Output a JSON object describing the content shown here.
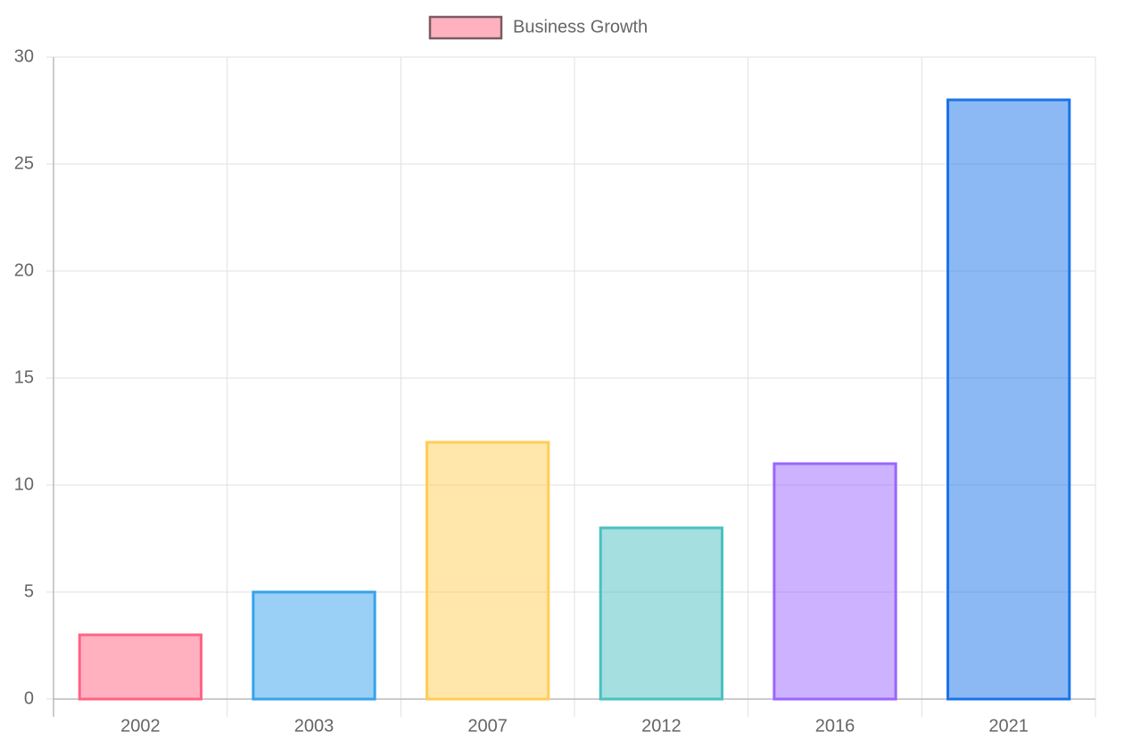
{
  "chart_data": {
    "type": "bar",
    "categories": [
      "2002",
      "2003",
      "2007",
      "2012",
      "2016",
      "2021"
    ],
    "series": [
      {
        "name": "Business Growth",
        "colors": [
          "#ff638280",
          "#36a2eb80",
          "#ffcd5680",
          "#4bc0c080",
          "#9966ff80",
          "#1a73e880"
        ],
        "border_colors": [
          "#ff6384",
          "#36a2eb",
          "#ffcd56",
          "#4bc0c0",
          "#9966ff",
          "#1a73e8"
        ],
        "values": [
          3,
          5,
          12,
          8,
          11,
          28
        ]
      }
    ],
    "ylim": [
      0,
      30
    ],
    "yticks": [
      0,
      5,
      10,
      15,
      20,
      25,
      30
    ],
    "grid": true,
    "legend": "top"
  }
}
